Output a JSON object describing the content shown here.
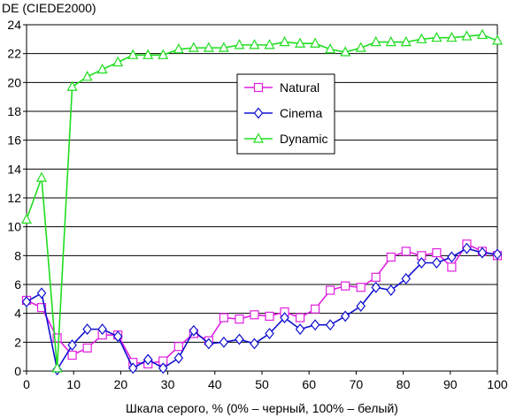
{
  "chart_data": {
    "type": "line",
    "title": "",
    "ylabel": "DE (CIEDE2000)",
    "xlabel": "Шкала серого, % (0% – черный, 100% – белый)",
    "xlim": [
      0,
      100
    ],
    "ylim": [
      0,
      24
    ],
    "x_ticks": [
      "0",
      "10",
      "20",
      "30",
      "40",
      "50",
      "60",
      "70",
      "80",
      "90",
      "100"
    ],
    "y_ticks": [
      "0",
      "2",
      "4",
      "6",
      "8",
      "10",
      "12",
      "14",
      "16",
      "18",
      "20",
      "22",
      "24"
    ],
    "grid": true,
    "legend_position": "center",
    "series": [
      {
        "name": "Natural",
        "color": "#e020e0",
        "marker": "square",
        "x": [
          0,
          3.2,
          6.5,
          9.7,
          12.9,
          16.1,
          19.4,
          22.6,
          25.8,
          29.0,
          32.3,
          35.5,
          38.7,
          41.9,
          45.2,
          48.4,
          51.6,
          54.8,
          58.1,
          61.3,
          64.5,
          67.7,
          71.0,
          74.2,
          77.4,
          80.6,
          83.9,
          87.1,
          90.3,
          93.5,
          96.8,
          100
        ],
        "y": [
          4.9,
          4.4,
          2.3,
          1.1,
          1.6,
          2.5,
          2.5,
          0.6,
          0.5,
          0.7,
          1.7,
          2.6,
          2.1,
          3.7,
          3.6,
          3.9,
          3.8,
          4.1,
          3.7,
          4.3,
          5.6,
          5.9,
          5.8,
          6.5,
          7.9,
          8.3,
          8.0,
          8.2,
          7.2,
          8.8,
          8.3,
          8.0
        ]
      },
      {
        "name": "Cinema",
        "color": "#1010d0",
        "marker": "diamond",
        "x": [
          0,
          3.2,
          6.5,
          9.7,
          12.9,
          16.1,
          19.4,
          22.6,
          25.8,
          29.0,
          32.3,
          35.5,
          38.7,
          41.9,
          45.2,
          48.4,
          51.6,
          54.8,
          58.1,
          61.3,
          64.5,
          67.7,
          71.0,
          74.2,
          77.4,
          80.6,
          83.9,
          87.1,
          90.3,
          93.5,
          96.8,
          100
        ],
        "y": [
          4.8,
          5.4,
          0.1,
          1.8,
          2.9,
          2.9,
          2.4,
          0.2,
          0.8,
          0.2,
          0.9,
          2.8,
          1.9,
          2.0,
          2.2,
          1.9,
          2.6,
          3.7,
          2.9,
          3.2,
          3.2,
          3.8,
          4.5,
          5.8,
          5.6,
          6.4,
          7.5,
          7.5,
          7.9,
          8.5,
          8.2,
          8.1
        ]
      },
      {
        "name": "Dynamic",
        "color": "#20dd20",
        "marker": "triangle",
        "x": [
          0,
          3.2,
          6.5,
          9.7,
          12.9,
          16.1,
          19.4,
          22.6,
          25.8,
          29.0,
          32.3,
          35.5,
          38.7,
          41.9,
          45.2,
          48.4,
          51.6,
          54.8,
          58.1,
          61.3,
          64.5,
          67.7,
          71.0,
          74.2,
          77.4,
          80.6,
          83.9,
          87.1,
          90.3,
          93.5,
          96.8,
          100
        ],
        "y": [
          10.5,
          13.4,
          0.2,
          19.7,
          20.4,
          20.9,
          21.4,
          21.9,
          21.9,
          21.9,
          22.3,
          22.4,
          22.4,
          22.4,
          22.6,
          22.6,
          22.6,
          22.8,
          22.7,
          22.7,
          22.3,
          22.1,
          22.4,
          22.8,
          22.8,
          22.8,
          23.0,
          23.1,
          23.1,
          23.2,
          23.3,
          22.9
        ]
      }
    ]
  }
}
